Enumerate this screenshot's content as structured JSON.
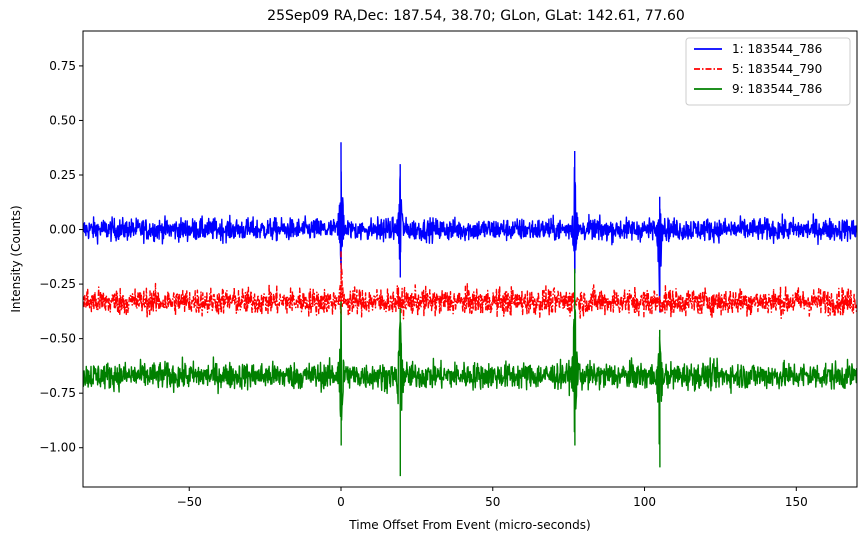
{
  "chart_data": {
    "type": "line",
    "title": "25Sep09 RA,Dec:  187.54,  38.70; GLon, GLat:  142.61,  77.60",
    "xlabel": "Time Offset From Event (micro-seconds)",
    "ylabel": "Intensity (Counts)",
    "xlim": [
      -85,
      170
    ],
    "ylim": [
      -1.18,
      0.91
    ],
    "xticks": [
      -50,
      0,
      50,
      100,
      150
    ],
    "xtick_labels": [
      "−50",
      "0",
      "50",
      "100",
      "150"
    ],
    "yticks": [
      0.75,
      0.5,
      0.25,
      0.0,
      -0.25,
      -0.5,
      -0.75,
      -1.0
    ],
    "ytick_labels": [
      "0.75",
      "0.50",
      "0.25",
      "0.00",
      "−0.25",
      "−0.50",
      "−0.75",
      "−1.00"
    ],
    "grid": false,
    "legend_position": "top-right",
    "series": [
      {
        "name": "1: 183544_786",
        "color": "#0000ff",
        "linestyle": "solid",
        "baseline": 0.0,
        "noise_amplitude": 0.05,
        "spikes": [
          {
            "x": 0,
            "min": -0.2,
            "max": 0.4
          },
          {
            "x": 19.5,
            "min": -0.22,
            "max": 0.3
          },
          {
            "x": 77,
            "min": -0.2,
            "max": 0.36
          },
          {
            "x": 105,
            "min": -0.38,
            "max": 0.15
          }
        ]
      },
      {
        "name": "5: 183544_790",
        "color": "#ff0000",
        "linestyle": "dashdot",
        "baseline": -0.33,
        "noise_amplitude": 0.06,
        "spikes": [
          {
            "x": 0,
            "min": -0.4,
            "max": -0.1
          }
        ]
      },
      {
        "name": "9: 183544_786",
        "color": "#008000",
        "linestyle": "solid",
        "baseline": -0.67,
        "noise_amplitude": 0.06,
        "spikes": [
          {
            "x": 0,
            "min": -0.99,
            "max": -0.33
          },
          {
            "x": 19.5,
            "min": -1.13,
            "max": -0.36
          },
          {
            "x": 77,
            "min": -0.99,
            "max": -0.18
          },
          {
            "x": 105,
            "min": -1.09,
            "max": -0.46
          }
        ]
      }
    ]
  }
}
